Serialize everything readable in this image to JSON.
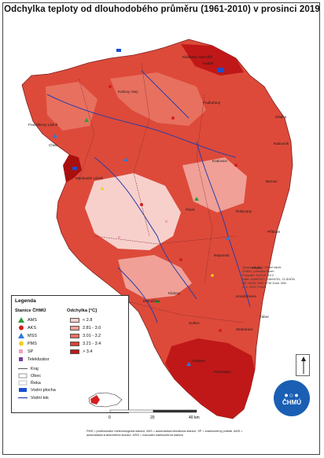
{
  "title": "Odchylka teploty od dlouhodobého průměru (1961-2010) v prosinci 2019",
  "map_labels": {
    "cities": [
      "Klášterec nad Ohří",
      "Kadaň",
      "Karlovy Vary",
      "Podbořany",
      "Františkovy Lázně",
      "Cheb",
      "Mariánské Lázně",
      "Rakovník",
      "Kralovice",
      "Kladno",
      "Plzeň",
      "Rokycany",
      "Beroun",
      "Příbram",
      "Nepomuk",
      "Horažďovice",
      "Klatovy",
      "Domažlice",
      "Sušice",
      "Vimperk",
      "Prachatice",
      "Strakonice",
      "Písek",
      "Tábor"
    ]
  },
  "legend": {
    "title": "Legenda",
    "stations_header": "Stanice ČHMÚ",
    "stations": [
      {
        "label": "AMS",
        "color": "#2e9d3a",
        "shape": "triangle"
      },
      {
        "label": "AKS",
        "color": "#d21f1f",
        "shape": "circle"
      },
      {
        "label": "MSS",
        "color": "#2b7bd6",
        "shape": "triangle"
      },
      {
        "label": "PMS",
        "color": "#f0d020",
        "shape": "circle"
      },
      {
        "label": "SP",
        "color": "#f0a0c0",
        "shape": "square"
      },
      {
        "label": "Teleklizátor",
        "color": "#7a3fa0",
        "shape": "square"
      }
    ],
    "other": [
      {
        "label": "Kraj"
      },
      {
        "label": "Obec"
      },
      {
        "label": "Řeka"
      },
      {
        "label": "Vodní plocha"
      },
      {
        "label": "Vodní tok"
      }
    ],
    "deviation_header": "Odchylka [°C]",
    "classes": [
      {
        "label": "< 2.8",
        "color": "#f7d0cc"
      },
      {
        "label": "2.81 - 3.0",
        "color": "#f0a096"
      },
      {
        "label": "3.01 - 3.2",
        "color": "#e8705f"
      },
      {
        "label": "3.21 - 3.4",
        "color": "#dc4030"
      },
      {
        "label": "> 3.4",
        "color": "#c01818"
      }
    ]
  },
  "scale": {
    "ticks": [
      "0",
      "20",
      "40 km"
    ]
  },
  "credits": [
    "Zpracoval: Mgr. Pavel Vacík",
    "ČHMÚ, pobočka Plzeň",
    "Program: ArcGIS, 10.2",
    "Data: DAMOKO, DAMVOD, CLIDATA",
    "HS: WGS 1984 UTM Zone 33N",
    "2. 1. 2020, Plzeň"
  ],
  "footnote": "PMS = profesionální meteorologická stanice, AKS = automatická klimatická stanice, SP = srážkoměrný potštář, AMS = automatická srážkoměrná stanice, MSS = manuální srážkoměrná stanice",
  "logo": {
    "text": "ČHMÚ",
    "mark": "●○●"
  }
}
